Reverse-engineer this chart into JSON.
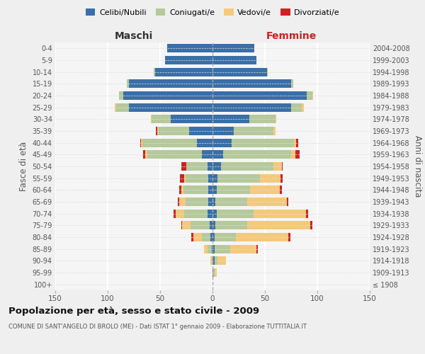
{
  "age_groups": [
    "100+",
    "95-99",
    "90-94",
    "85-89",
    "80-84",
    "75-79",
    "70-74",
    "65-69",
    "60-64",
    "55-59",
    "50-54",
    "45-49",
    "40-44",
    "35-39",
    "30-34",
    "25-29",
    "20-24",
    "15-19",
    "10-14",
    "5-9",
    "0-4"
  ],
  "birth_years": [
    "≤ 1908",
    "1909-1913",
    "1914-1918",
    "1919-1923",
    "1924-1928",
    "1929-1933",
    "1934-1938",
    "1939-1943",
    "1944-1948",
    "1949-1953",
    "1954-1958",
    "1959-1963",
    "1964-1968",
    "1969-1973",
    "1974-1978",
    "1979-1983",
    "1984-1988",
    "1989-1993",
    "1994-1998",
    "1999-2003",
    "2004-2008"
  ],
  "colors": {
    "celibe": "#3a6fa8",
    "coniugato": "#b5c99a",
    "vedovo": "#f5c97a",
    "divorziato": "#cc2222"
  },
  "maschi": {
    "celibe": [
      0,
      0,
      0,
      1,
      2,
      3,
      5,
      4,
      4,
      4,
      5,
      10,
      15,
      22,
      40,
      80,
      85,
      80,
      55,
      45,
      43
    ],
    "coniugato": [
      0,
      0,
      1,
      4,
      8,
      18,
      22,
      22,
      24,
      22,
      20,
      52,
      52,
      30,
      18,
      12,
      4,
      2,
      1,
      0,
      0
    ],
    "vedovo": [
      0,
      0,
      1,
      3,
      8,
      8,
      8,
      6,
      2,
      1,
      0,
      2,
      1,
      1,
      1,
      1,
      0,
      0,
      0,
      0,
      0
    ],
    "divorziato": [
      0,
      0,
      0,
      0,
      2,
      1,
      2,
      1,
      2,
      4,
      5,
      2,
      1,
      1,
      0,
      0,
      0,
      0,
      0,
      0,
      0
    ]
  },
  "femmine": {
    "nubile": [
      0,
      1,
      2,
      2,
      2,
      3,
      4,
      3,
      4,
      5,
      8,
      10,
      18,
      20,
      35,
      75,
      90,
      75,
      52,
      42,
      40
    ],
    "coniugata": [
      0,
      1,
      3,
      15,
      20,
      30,
      35,
      30,
      32,
      40,
      50,
      65,
      60,
      38,
      25,
      10,
      5,
      2,
      1,
      0,
      0
    ],
    "vedova": [
      0,
      2,
      8,
      25,
      50,
      60,
      50,
      38,
      28,
      20,
      8,
      4,
      2,
      2,
      1,
      2,
      1,
      0,
      0,
      0,
      0
    ],
    "divorziata": [
      0,
      0,
      0,
      1,
      2,
      2,
      2,
      1,
      2,
      2,
      1,
      4,
      2,
      0,
      0,
      0,
      0,
      0,
      0,
      0,
      0
    ]
  },
  "xlim": 150,
  "title": "Popolazione per età, sesso e stato civile - 2009",
  "subtitle": "COMUNE DI SANT'ANGELO DI BROLO (ME) - Dati ISTAT 1° gennaio 2009 - Elaborazione TUTTITALIA.IT",
  "ylabel_left": "Fasce di età",
  "ylabel_right": "Anni di nascita",
  "xlabel_maschi": "Maschi",
  "xlabel_femmine": "Femmine",
  "bg_color": "#efefef",
  "plot_bg": "#f5f5f5"
}
